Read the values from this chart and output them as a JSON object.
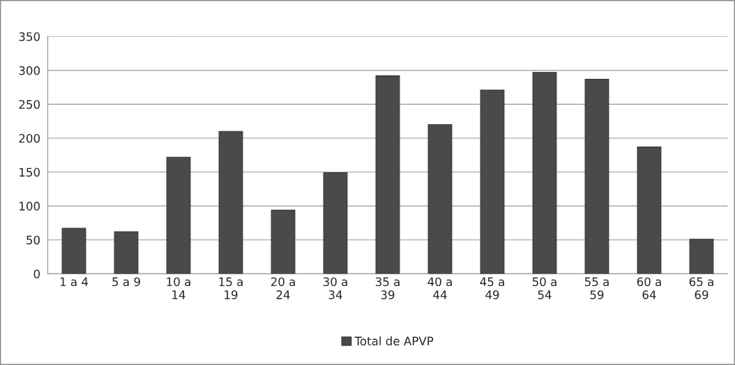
{
  "chart_data": {
    "type": "bar",
    "categories": [
      "1 a 4",
      "5 a 9",
      "10 a 14",
      "15 a 19",
      "20 a 24",
      "30 a 34",
      "35 a 39",
      "40 a 44",
      "45 a 49",
      "50 a 54",
      "55 a 59",
      "60 a 64",
      "65 a 69"
    ],
    "series": [
      {
        "name": "Total de APVP",
        "color": "#4a4a4a",
        "values": [
          67,
          62,
          172,
          210,
          94,
          149,
          292,
          220,
          271,
          297,
          287,
          187,
          51
        ]
      }
    ],
    "ylim": [
      0,
      350
    ],
    "yticks": [
      0,
      50,
      100,
      150,
      200,
      250,
      300,
      350
    ],
    "grid": "y",
    "legend": "bottom"
  }
}
